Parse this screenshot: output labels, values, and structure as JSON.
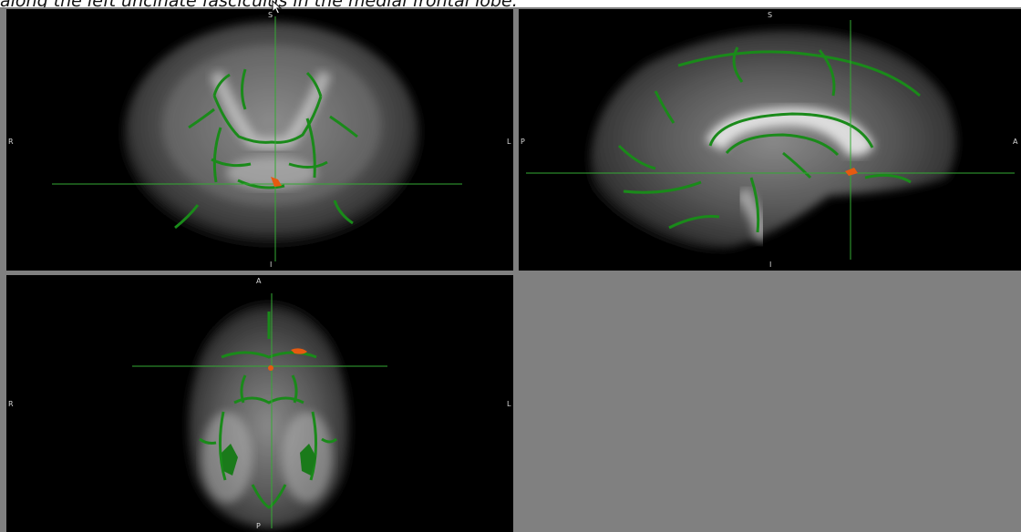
{
  "caption": "along the left uncinate fasciculus in the medial frontal lobe.",
  "views": {
    "coronal": {
      "top": "S",
      "bottom": "I",
      "left": "R",
      "right": "L"
    },
    "sagittal": {
      "top": "S",
      "bottom": "I",
      "left": "P",
      "right": "A"
    },
    "axial": {
      "top": "A",
      "bottom": "P",
      "left": "R",
      "right": "L"
    }
  },
  "colors": {
    "background": "#000000",
    "tract_green": "#1a8a1a",
    "crosshair": "#33aa33",
    "highlight_orange": "#e65a10",
    "empty_panel": "#808080"
  },
  "icons": {
    "cursor": "mouse-pointer-icon"
  }
}
